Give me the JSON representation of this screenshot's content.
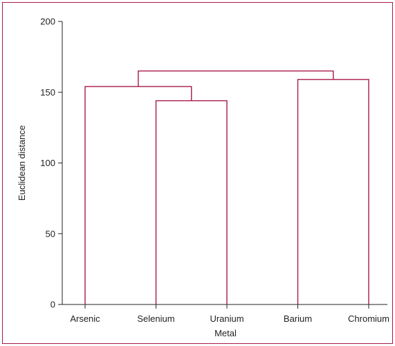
{
  "chart_data": {
    "type": "dendrogram",
    "xlabel": "Metal",
    "ylabel": "Euclidean distance",
    "ylim": [
      0,
      200
    ],
    "yticks": [
      0,
      50,
      100,
      150,
      200
    ],
    "categories": [
      "Arsenic",
      "Selenium",
      "Uranium",
      "Barium",
      "Chromium"
    ],
    "merges": [
      {
        "left": "Selenium",
        "right": "Uranium",
        "height": 144
      },
      {
        "left": "Arsenic",
        "right": "Selenium+Uranium",
        "height": 154
      },
      {
        "left": "Barium",
        "right": "Chromium",
        "height": 159
      },
      {
        "left": "Arsenic+Selenium+Uranium",
        "right": "Barium+Chromium",
        "height": 165
      }
    ],
    "grid": false,
    "legend": "none",
    "colors": {
      "branch": "#a8174a",
      "frame": "#a8174a",
      "axis": "#222222"
    }
  }
}
